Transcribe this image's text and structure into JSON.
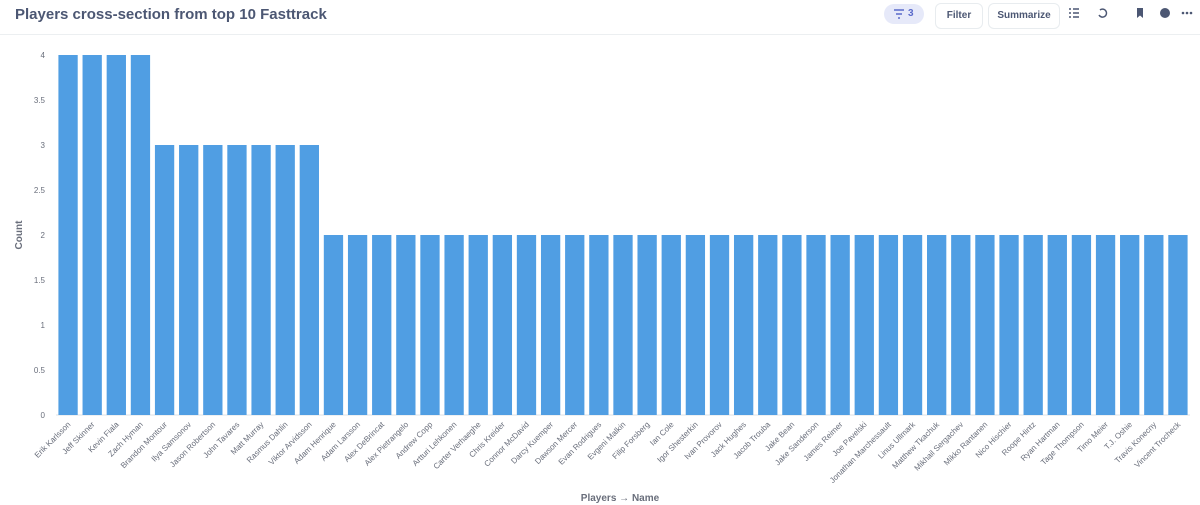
{
  "toolbar": {
    "title": "Players cross-section from top 10 Fasttrack",
    "filter_count": 3,
    "filter_button": "Filter",
    "summarize_button": "Summarize"
  },
  "chart_data": {
    "type": "bar",
    "categories": [
      "Erik Karlsson",
      "Jeff Skinner",
      "Kevin Fiala",
      "Zach Hyman",
      "Brandon Montour",
      "Ilya Samsonov",
      "Jason Robertson",
      "John Tavares",
      "Matt Murray",
      "Rasmus Dahlin",
      "Viktor Arvidsson",
      "Adam Henrique",
      "Adam Larsson",
      "Alex DeBrincat",
      "Alex Pietrangelo",
      "Andrew Copp",
      "Artturi Lehkonen",
      "Carter Verhaeghe",
      "Chris Kreider",
      "Connor McDavid",
      "Darcy Kuemper",
      "Dawson Mercer",
      "Evan Rodrigues",
      "Evgeni Malkin",
      "Filip Forsberg",
      "Ian Cole",
      "Igor Shesterkin",
      "Ivan Provorov",
      "Jack Hughes",
      "Jacob Trouba",
      "Jake Bean",
      "Jake Sanderson",
      "James Reimer",
      "Joe Pavelski",
      "Jonathan Marchessault",
      "Linus Ullmark",
      "Matthew Tkachuk",
      "Mikhail Sergachev",
      "Mikko Rantanen",
      "Nico Hischier",
      "Roope Hintz",
      "Ryan Hartman",
      "Tage Thompson",
      "Timo Meier",
      "T.J. Oshie",
      "Travis Konecny",
      "Vincent Trocheck"
    ],
    "values": [
      4,
      4,
      4,
      4,
      3,
      3,
      3,
      3,
      3,
      3,
      3,
      2,
      2,
      2,
      2,
      2,
      2,
      2,
      2,
      2,
      2,
      2,
      2,
      2,
      2,
      2,
      2,
      2,
      2,
      2,
      2,
      2,
      2,
      2,
      2,
      2,
      2,
      2,
      2,
      2,
      2,
      2,
      2,
      2,
      2,
      2,
      2
    ],
    "color": "#509ee3",
    "x_label": "Players → Name",
    "y_label": "Count",
    "ylim": [
      0,
      4
    ],
    "yticks": [
      0,
      0.5,
      1,
      1.5,
      2,
      2.5,
      3,
      3.5,
      4
    ],
    "grid": false
  }
}
